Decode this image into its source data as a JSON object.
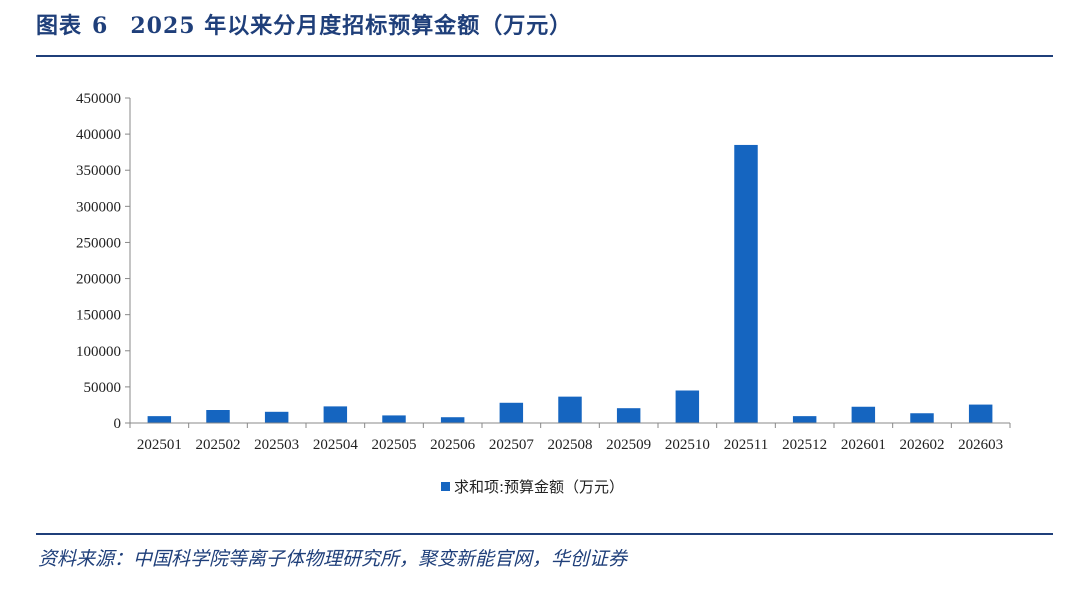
{
  "header": {
    "figure_label": "图表",
    "figure_number": "6",
    "title_text": "2025 年以来分月度招标预算金额（万元）"
  },
  "footer": {
    "source": "资料来源：中国科学院等离子体物理研究所，聚变新能官网，华创证券"
  },
  "colors": {
    "accent": "#1f3f7a",
    "bar": "#1565c0"
  },
  "chart_data": {
    "type": "bar",
    "title": "",
    "xlabel": "",
    "ylabel": "",
    "categories": [
      "202501",
      "202502",
      "202503",
      "202504",
      "202505",
      "202506",
      "202507",
      "202508",
      "202509",
      "202510",
      "202511",
      "202512",
      "202601",
      "202602",
      "202603"
    ],
    "series": [
      {
        "name": "求和项:预算金额（万元）",
        "values": [
          9500,
          18000,
          15500,
          23000,
          10500,
          8000,
          28000,
          36500,
          20500,
          45000,
          385000,
          9500,
          22500,
          13500,
          25500
        ]
      }
    ],
    "ylim": [
      0,
      450000
    ],
    "yticks": [
      "0",
      "50000",
      "100000",
      "150000",
      "200000",
      "250000",
      "300000",
      "350000",
      "400000",
      "450000"
    ],
    "grid": false,
    "legend_position": "bottom"
  }
}
